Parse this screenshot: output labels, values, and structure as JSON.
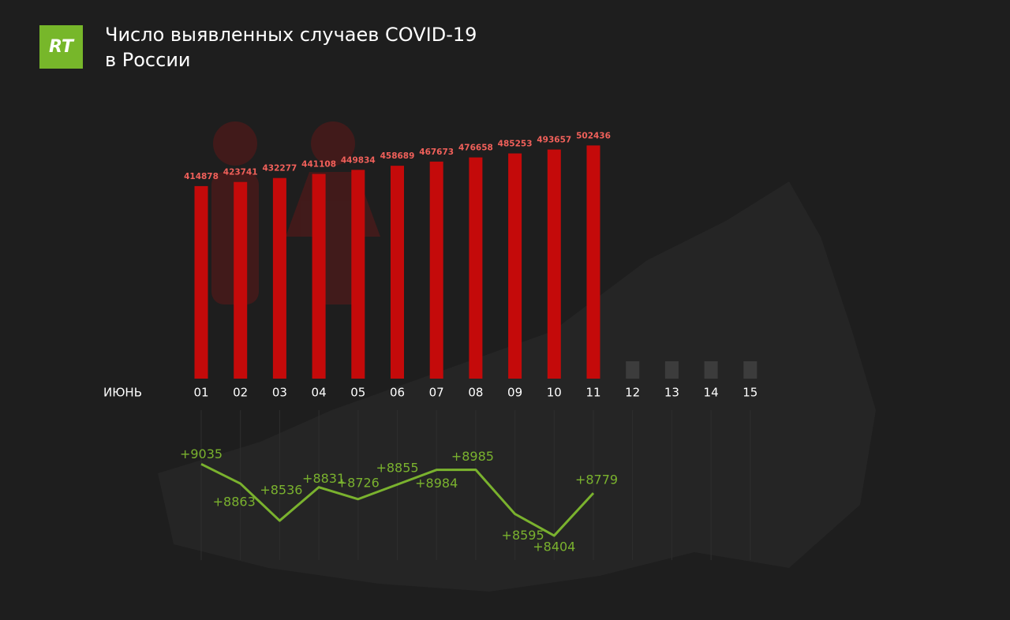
{
  "chart_data": [
    {
      "type": "bar",
      "logo": "RT",
      "title": [
        "Число выявленных случаев COVID-19",
        "в России"
      ],
      "axis_label": "ИЮНЬ",
      "categories": [
        "01",
        "02",
        "03",
        "04",
        "05",
        "06",
        "07",
        "08",
        "09",
        "10",
        "11",
        "12",
        "13",
        "14",
        "15"
      ],
      "values": [
        414878,
        423741,
        432277,
        441108,
        449834,
        458689,
        467673,
        476658,
        485253,
        493657,
        502436,
        null,
        null,
        null,
        null
      ],
      "color": "#c40a0a",
      "label_color": "#f0605a",
      "ylim": [
        0,
        600000
      ]
    },
    {
      "type": "line",
      "values": [
        9035,
        8863,
        8536,
        8831,
        8726,
        8855,
        8984,
        8985,
        8595,
        8404,
        8779
      ],
      "value_labels": [
        "+9035",
        "+8863",
        "+8536",
        "+8831",
        "+8726",
        "+8855",
        "+8984",
        "+8985",
        "+8595",
        "+8404",
        "+8779"
      ],
      "color": "#7ab22e",
      "ylim": [
        8300,
        9100
      ]
    }
  ]
}
